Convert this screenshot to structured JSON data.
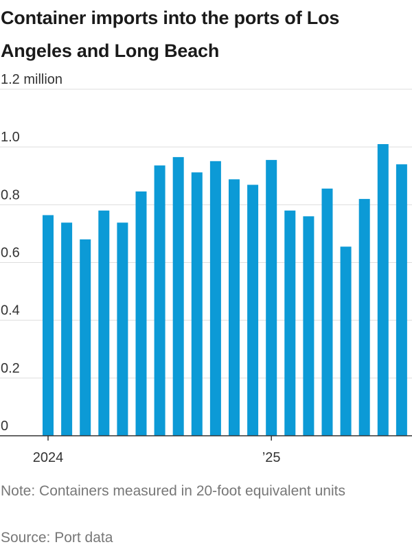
{
  "title": "Container imports into the ports of Los Angeles and Long Beach",
  "note": "Note: Containers measured in 20-foot equivalent units",
  "source": "Source: Port data",
  "colors": {
    "bar": "#0c9ad6",
    "grid": "#dddddd",
    "axis": "#333333"
  },
  "chart_data": {
    "type": "bar",
    "title": "Container imports into the ports of Los Angeles and Long Beach",
    "xlabel": "",
    "ylabel": "",
    "ylim": [
      0,
      1.2
    ],
    "y_unit_label": "million",
    "yticks": [
      0,
      0.2,
      0.4,
      0.6,
      0.8,
      1.0,
      1.2
    ],
    "ytick_labels": [
      "0",
      "0.2",
      "0.4",
      "0.6",
      "0.8",
      "1.0",
      "1.2 million"
    ],
    "categories": [
      "2024-01",
      "2024-02",
      "2024-03",
      "2024-04",
      "2024-05",
      "2024-06",
      "2024-07",
      "2024-08",
      "2024-09",
      "2024-10",
      "2024-11",
      "2024-12",
      "2025-01",
      "2025-02",
      "2025-03",
      "2025-04",
      "2025-05",
      "2025-06",
      "2025-07",
      "2025-08"
    ],
    "values": [
      0.764,
      0.738,
      0.68,
      0.78,
      0.738,
      0.846,
      0.936,
      0.965,
      0.912,
      0.951,
      0.888,
      0.869,
      0.955,
      0.78,
      0.76,
      0.856,
      0.655,
      0.82,
      1.01,
      0.94
    ],
    "xtick_labels": [
      {
        "category": "2024-01",
        "label": "2024"
      },
      {
        "category": "2025-01",
        "label": "’25"
      }
    ],
    "grid": true,
    "legend": "none"
  }
}
